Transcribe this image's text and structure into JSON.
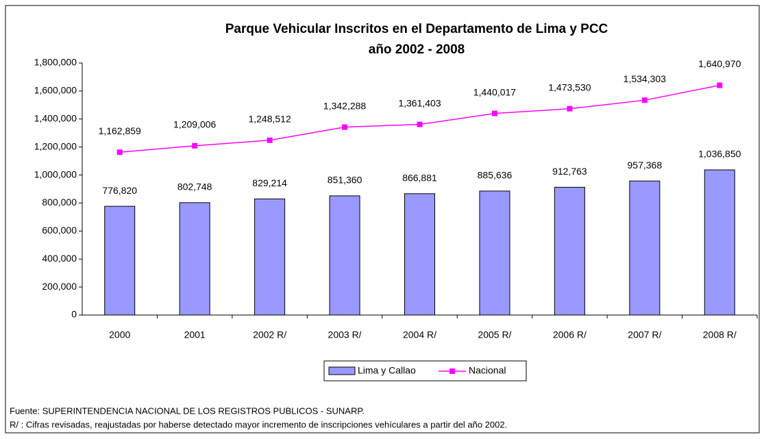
{
  "chart_data": {
    "type": "bar",
    "title": [
      "Parque Vehicular Inscritos en el Departamento de Lima y PCC",
      "año 2002 - 2008"
    ],
    "categories": [
      "2000",
      "2001",
      "2002 R/",
      "2003 R/",
      "2004 R/",
      "2005 R/",
      "2006 R/",
      "2007 R/",
      "2008 R/"
    ],
    "series": [
      {
        "name": "Lima y Callao",
        "type": "bar",
        "color": "#9999ff",
        "values": [
          776820,
          802748,
          829214,
          851360,
          866881,
          885636,
          912763,
          957368,
          1036850
        ],
        "value_labels": [
          "776,820",
          "802,748",
          "829,214",
          "851,360",
          "866,881",
          "885,636",
          "912,763",
          "957,368",
          "1,036,850"
        ]
      },
      {
        "name": "Nacional",
        "type": "line",
        "color": "#ff00ff",
        "values": [
          1162859,
          1209006,
          1248512,
          1342288,
          1361403,
          1440017,
          1473530,
          1534303,
          1640970
        ],
        "value_labels": [
          "1,162,859",
          "1,209,006",
          "1,248,512",
          "1,342,288",
          "1,361,403",
          "1,440,017",
          "1,473,530",
          "1,534,303",
          "1,640,970"
        ]
      }
    ],
    "ylim": [
      0,
      1800000
    ],
    "yticks": [
      0,
      {
        "value": 200000,
        "label": "200,000"
      },
      {
        "value": 400000,
        "label": "400,000"
      },
      {
        "value": 600000,
        "label": "600,000"
      },
      {
        "value": 800000,
        "label": "800,000"
      },
      {
        "value": 1000000,
        "label": "1,000,000"
      },
      {
        "value": 1200000,
        "label": "1,200,000"
      },
      {
        "value": 1400000,
        "label": "1,400,000"
      },
      {
        "value": 1600000,
        "label": "1,600,000"
      },
      {
        "value": 1800000,
        "label": "1,800,000"
      }
    ],
    "grid": false,
    "legend": "bottom",
    "notes": [
      "Fuente: SUPERINTENDENCIA NACIONAL DE LOS REGISTROS PUBLICOS - SUNARP.",
      "R/ : Cifras revisadas, reajustadas por haberse detectado mayor incremento de inscripciones vehículares a partir del año 2002."
    ]
  }
}
